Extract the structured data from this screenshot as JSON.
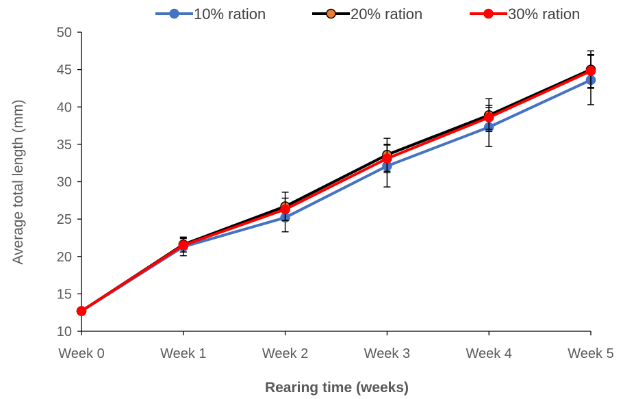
{
  "chart_data": {
    "type": "line",
    "categories": [
      "Week 0",
      "Week 1",
      "Week 2",
      "Week 3",
      "Week 4",
      "Week 5"
    ],
    "xlabel": "Rearing time (weeks)",
    "ylabel": "Average total length (mm)",
    "ylim": [
      10,
      50
    ],
    "yticks": [
      10,
      15,
      20,
      25,
      30,
      35,
      40,
      45,
      50
    ],
    "grid": false,
    "legend_position": "top",
    "series": [
      {
        "name": "10% ration",
        "line_color": "#4472C4",
        "marker_color": "#4472C4",
        "values": [
          12.7,
          21.3,
          25.2,
          32.1,
          37.3,
          43.6
        ],
        "error": [
          0.0,
          1.2,
          1.9,
          2.8,
          2.6,
          3.3
        ]
      },
      {
        "name": "20% ration",
        "line_color": "#000000",
        "marker_color": "#ED7D31",
        "values": [
          12.7,
          21.6,
          26.7,
          33.6,
          38.9,
          45.0
        ],
        "error": [
          0.0,
          1.0,
          1.9,
          2.2,
          2.2,
          2.5
        ]
      },
      {
        "name": "30% ration",
        "line_color": "#FF0000",
        "marker_color": "#FF0000",
        "values": [
          12.7,
          21.5,
          26.3,
          33.1,
          38.6,
          44.8
        ],
        "error": [
          0.0,
          0.9,
          1.5,
          1.9,
          1.6,
          2.2
        ]
      }
    ]
  }
}
